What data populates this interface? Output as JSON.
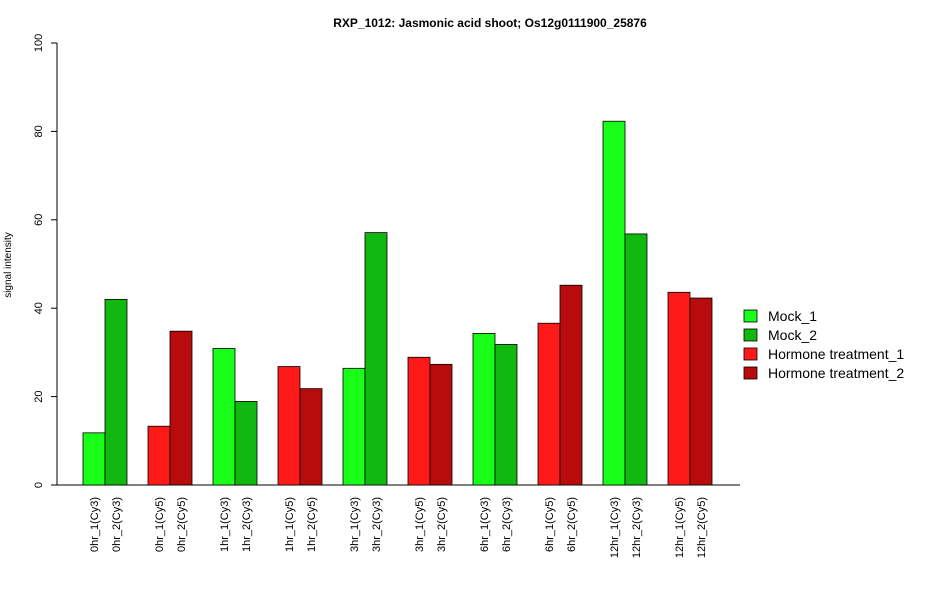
{
  "chart_data": {
    "type": "bar",
    "title": "RXP_1012: Jasmonic acid shoot; Os12g0111900_25876",
    "xlabel": "",
    "ylabel": "signal intensity",
    "ylim": [
      0,
      100
    ],
    "yticks": [
      0,
      20,
      40,
      60,
      80,
      100
    ],
    "grid": false,
    "legend_position": "right",
    "bars": [
      {
        "label": "0hr_1(Cy3)",
        "value": 11.8,
        "series": "Mock_1"
      },
      {
        "label": "0hr_2(Cy3)",
        "value": 42.0,
        "series": "Mock_2"
      },
      {
        "label": "0hr_1(Cy5)",
        "value": 13.3,
        "series": "Hormone treatment_1"
      },
      {
        "label": "0hr_2(Cy5)",
        "value": 34.8,
        "series": "Hormone treatment_2"
      },
      {
        "label": "1hr_1(Cy3)",
        "value": 30.9,
        "series": "Mock_1"
      },
      {
        "label": "1hr_2(Cy3)",
        "value": 18.9,
        "series": "Mock_2"
      },
      {
        "label": "1hr_1(Cy5)",
        "value": 26.8,
        "series": "Hormone treatment_1"
      },
      {
        "label": "1hr_2(Cy5)",
        "value": 21.8,
        "series": "Hormone treatment_2"
      },
      {
        "label": "3hr_1(Cy3)",
        "value": 26.4,
        "series": "Mock_1"
      },
      {
        "label": "3hr_2(Cy3)",
        "value": 57.1,
        "series": "Mock_2"
      },
      {
        "label": "3hr_1(Cy5)",
        "value": 28.9,
        "series": "Hormone treatment_1"
      },
      {
        "label": "3hr_2(Cy5)",
        "value": 27.3,
        "series": "Hormone treatment_2"
      },
      {
        "label": "6hr_1(Cy3)",
        "value": 34.3,
        "series": "Mock_1"
      },
      {
        "label": "6hr_2(Cy3)",
        "value": 31.8,
        "series": "Mock_2"
      },
      {
        "label": "6hr_1(Cy5)",
        "value": 36.6,
        "series": "Hormone treatment_1"
      },
      {
        "label": "6hr_2(Cy5)",
        "value": 45.2,
        "series": "Hormone treatment_2"
      },
      {
        "label": "12hr_1(Cy3)",
        "value": 82.3,
        "series": "Mock_1"
      },
      {
        "label": "12hr_2(Cy3)",
        "value": 56.8,
        "series": "Mock_2"
      },
      {
        "label": "12hr_1(Cy5)",
        "value": 43.6,
        "series": "Hormone treatment_1"
      },
      {
        "label": "12hr_2(Cy5)",
        "value": 42.3,
        "series": "Hormone treatment_2"
      }
    ],
    "legend": [
      {
        "name": "Mock_1",
        "color": "#1aff1a"
      },
      {
        "name": "Mock_2",
        "color": "#10b810"
      },
      {
        "name": "Hormone treatment_1",
        "color": "#ff1a1a"
      },
      {
        "name": "Hormone treatment_2",
        "color": "#b80c0c"
      }
    ]
  }
}
